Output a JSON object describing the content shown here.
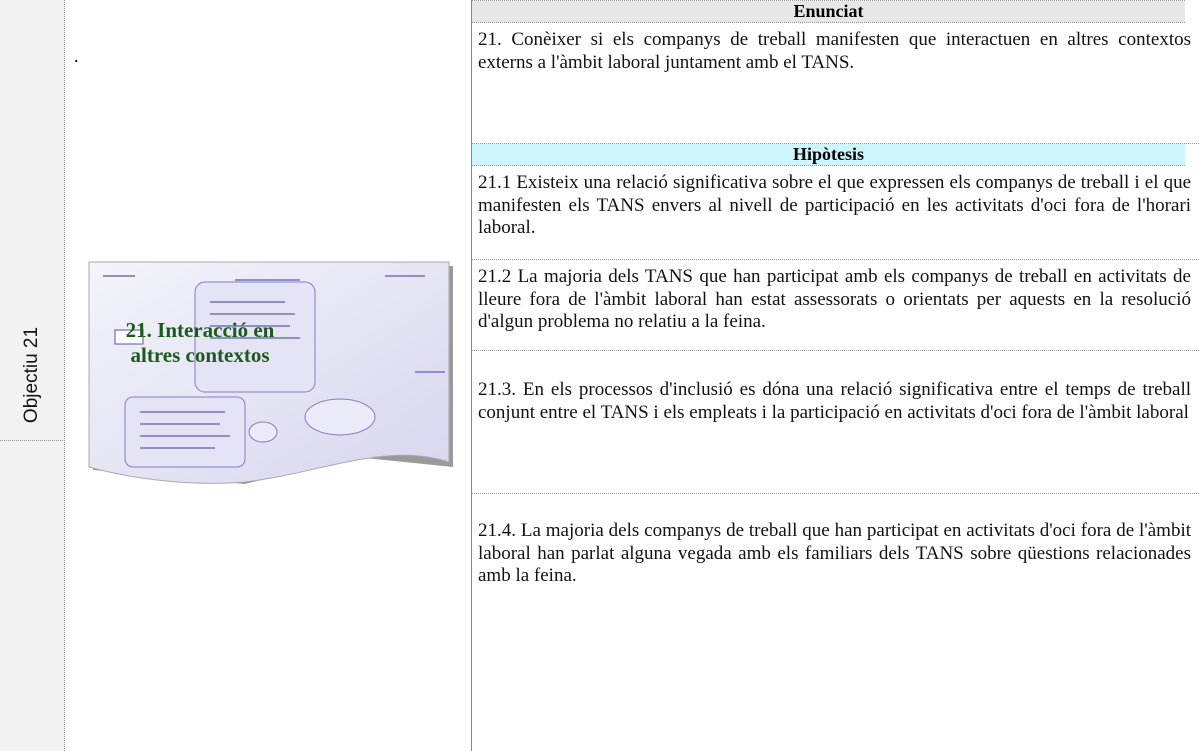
{
  "row_label": "Objectiu 21",
  "dot": ".",
  "image_caption": "21. Interacció en altres contextos",
  "enunciat": {
    "header": "Enunciat",
    "text": "21. Conèixer si els companys de treball manifesten que interactuen en altres contextos externs a l'àmbit laboral juntament amb el TANS."
  },
  "hipotesis": {
    "header": "Hipòtesis",
    "items": [
      "21.1 Existeix una relació significativa sobre el que expressen els companys de treball i el que manifesten els TANS envers al nivell de participació en les activitats d'oci fora de l'horari laboral.",
      "21.2 La majoria dels TANS que han participat amb els companys de treball en activitats de lleure fora de l'àmbit laboral han estat assessorats o orientats per aquests en la resolució d'algun problema no relatiu a la feina.",
      "21.3. En els processos d'inclusió es dóna una relació significativa entre el temps de treball conjunt entre el TANS i els empleats i la participació en activitats d'oci  fora de l'àmbit laboral",
      "21.4. La majoria dels companys de treball que han participat en activitats d'oci fora de l'àmbit laboral han parlat alguna vegada amb els familiars dels TANS sobre qüestions relacionades amb la feina."
    ]
  }
}
